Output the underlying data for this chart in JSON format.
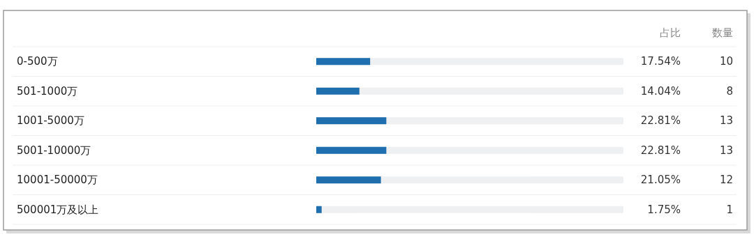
{
  "chart_data": {
    "type": "bar",
    "orientation": "horizontal",
    "categories": [
      "0-500万",
      "501-1000万",
      "1001-5000万",
      "5001-10000万",
      "10001-50000万",
      "500001万及以上"
    ],
    "values": [
      17.54,
      14.04,
      22.81,
      22.81,
      21.05,
      1.75
    ],
    "value_labels": [
      "17.54%",
      "14.04%",
      "22.81%",
      "22.81%",
      "21.05%",
      "1.75%"
    ],
    "color": "#1f6fae",
    "xlim": [
      0,
      100
    ],
    "annotations": [
      "占比",
      "数量",
      "10",
      "8",
      "13",
      "13",
      "12",
      "1"
    ]
  }
}
